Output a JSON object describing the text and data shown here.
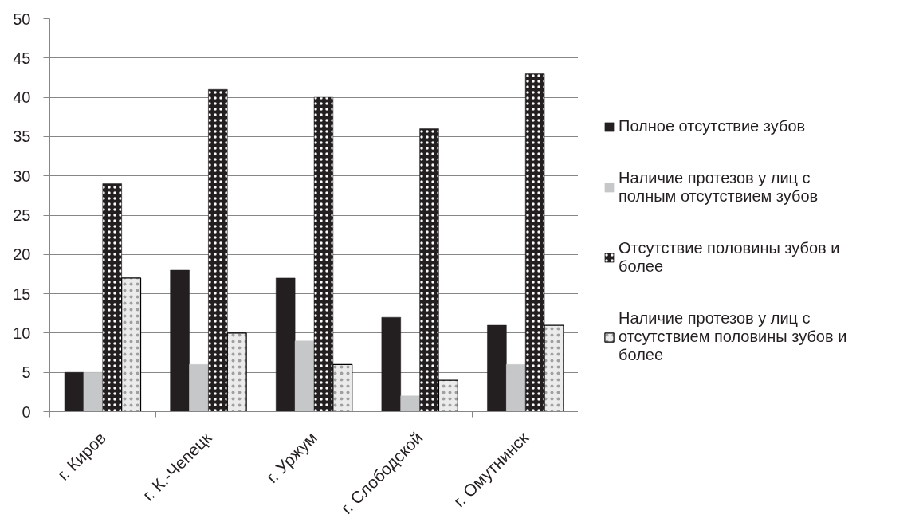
{
  "chart_data": {
    "type": "bar",
    "categories": [
      "г. Киров",
      "г. К.-Чепецк",
      "г. Уржум",
      "г. Слободской",
      "г. Омутнинск"
    ],
    "series": [
      {
        "name": "Полное отсутствие зубов",
        "color": "#231f20",
        "values": [
          5,
          18,
          17,
          12,
          11
        ]
      },
      {
        "name": "Наличие протезов у лиц с полным отсутствием зубов",
        "color": "#c6c7c8",
        "values": [
          5,
          6,
          9,
          2,
          6
        ]
      },
      {
        "name": "Отсутствие половины зубов и более",
        "color": "#231f20",
        "values": [
          29,
          41,
          40,
          36,
          43
        ]
      },
      {
        "name": "Наличие протезов у лиц с отсутствием половины зубов и более",
        "color": "#ebebeb",
        "values": [
          17,
          10,
          6,
          4,
          11
        ]
      }
    ],
    "ylim": [
      0,
      50
    ],
    "yticks": [
      0,
      5,
      10,
      15,
      20,
      25,
      30,
      35,
      40,
      45,
      50
    ],
    "grid": "y",
    "legend": "right"
  }
}
